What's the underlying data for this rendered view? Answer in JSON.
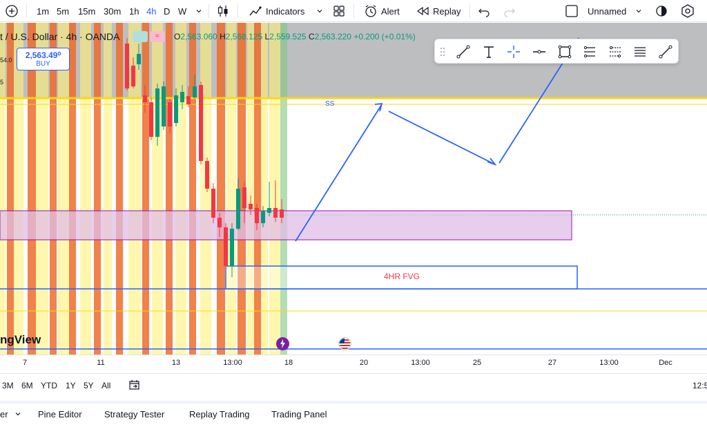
{
  "toolbar": {
    "timeframes": [
      "1m",
      "5m",
      "15m",
      "30m",
      "1h",
      "4h",
      "D",
      "W"
    ],
    "active_timeframe": "4h",
    "indicators_label": "Indicators",
    "alert_label": "Alert",
    "replay_label": "Replay",
    "layout_name": "Unnamed"
  },
  "legend": {
    "symbol": "t / U.S. Dollar · 4h · OANDA",
    "icon_a": "",
    "icon_b": "≈",
    "open_key": "O",
    "open": "2,563.060",
    "high_key": "H",
    "high": "2,568.125",
    "low_key": "L",
    "low": "2,559.525",
    "close_key": "C",
    "close": "2,563.220",
    "change": "+0.200 (+0.01%)"
  },
  "price_box": {
    "price": "2,563.49⁰",
    "side": "BUY"
  },
  "edge_numbers": [
    "54.0",
    "5"
  ],
  "drawings": {
    "ss_label": "SS",
    "fvg_label": "4HR FVG"
  },
  "watermark": "ngView",
  "time_axis": {
    "labels": [
      "7",
      "11",
      "13",
      "13:00",
      "18",
      "20",
      "13:00",
      "25",
      "27",
      "13:00",
      "Dec"
    ],
    "right_time": "12:5"
  },
  "range_bar": [
    "3M",
    "6M",
    "YTD",
    "1Y",
    "5Y",
    "All"
  ],
  "bottom_tabs": [
    "er",
    "Pine Editor",
    "Strategy Tester",
    "Replay Trading",
    "Trading Panel"
  ],
  "colors": {
    "accent": "#2962ff",
    "up": "#089981",
    "down": "#f23645",
    "zone_purple": "#e1bee7",
    "zone_border": "#9c27b0",
    "band_orange": "#ed6c2a",
    "band_yellow": "#fff176",
    "band_green": "#81c784",
    "gray_zone": "#bdbec0"
  },
  "icons": [
    "plus-circle-icon",
    "chevron-down-icon",
    "candles-icon",
    "indicators-icon",
    "templates-icon",
    "alert-icon",
    "replay-icon",
    "undo-icon",
    "redo-icon",
    "layout-icon",
    "settings-icon",
    "publish-icon",
    "trendline-icon",
    "text-icon",
    "crosshair-icon",
    "horizontal-ray-icon",
    "rectangle-icon",
    "fib-icon",
    "parallel-channel-icon",
    "long-lines-icon",
    "path-icon",
    "event-lightning-icon",
    "us-flag-icon",
    "date-range-icon"
  ]
}
